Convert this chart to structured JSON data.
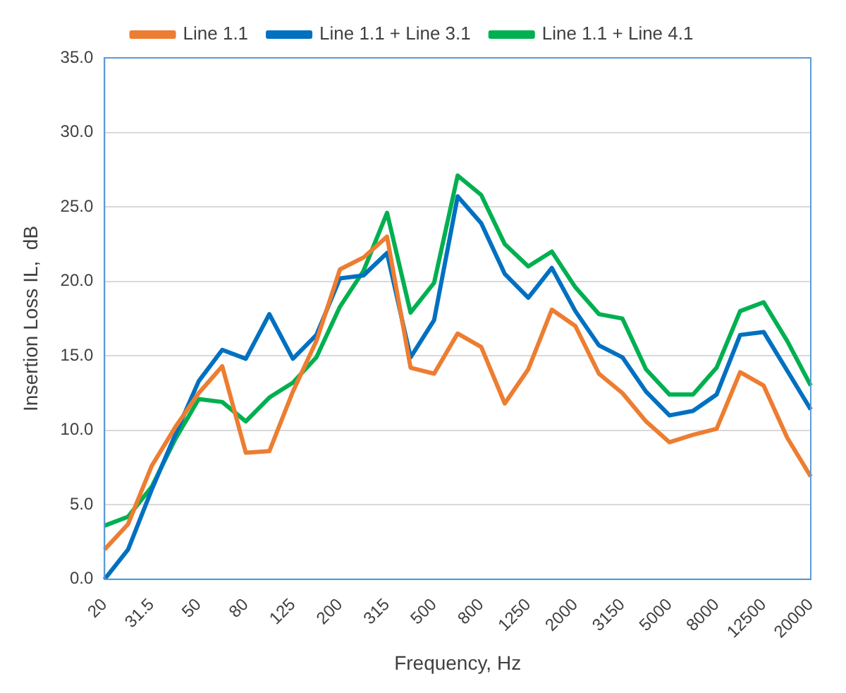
{
  "chart_data": {
    "type": "line",
    "xlabel": "Frequency, Hz",
    "ylabel": "Insertion Loss IL,  dB",
    "categories": [
      "20",
      null,
      "31.5",
      null,
      "50",
      null,
      "80",
      null,
      "125",
      null,
      "200",
      null,
      "315",
      null,
      "500",
      null,
      "800",
      null,
      "1250",
      null,
      "2000",
      null,
      "3150",
      null,
      "5000",
      null,
      "8000",
      null,
      "12500",
      null,
      "20000"
    ],
    "series": [
      {
        "name": "Line 1.1",
        "color": "#ed7d31",
        "values": [
          2.0,
          3.7,
          7.6,
          10.2,
          12.5,
          14.3,
          8.5,
          8.6,
          12.6,
          16.0,
          20.8,
          21.6,
          23.0,
          14.2,
          13.8,
          16.5,
          15.6,
          11.8,
          14.1,
          18.1,
          17.0,
          13.8,
          12.5,
          10.6,
          9.2,
          9.7,
          10.1,
          13.9,
          13.0,
          9.5,
          6.9
        ]
      },
      {
        "name": "Line 1.1 + Line 3.1",
        "color": "#0070c0",
        "values": [
          0.0,
          2.0,
          6.0,
          9.7,
          13.3,
          15.4,
          14.8,
          17.8,
          14.8,
          16.4,
          20.2,
          20.4,
          21.9,
          14.9,
          17.4,
          25.7,
          23.9,
          20.5,
          18.9,
          20.9,
          18.0,
          15.7,
          14.9,
          12.6,
          11.0,
          11.3,
          12.4,
          16.4,
          16.6,
          14.0,
          11.4
        ]
      },
      {
        "name": "Line 1.1 + Line 4.1",
        "color": "#00b050",
        "values": [
          3.6,
          4.2,
          6.2,
          9.4,
          12.1,
          11.9,
          10.6,
          12.2,
          13.2,
          14.9,
          18.3,
          20.7,
          24.6,
          17.9,
          19.9,
          27.1,
          25.8,
          22.5,
          21.0,
          22.0,
          19.6,
          17.8,
          17.5,
          14.1,
          12.4,
          12.4,
          14.2,
          18.0,
          18.6,
          16.0,
          13.0
        ]
      }
    ],
    "ylim": [
      0,
      35
    ],
    "yticks": [
      {
        "value": 0,
        "label": "0.0"
      },
      {
        "value": 5,
        "label": "5.0"
      },
      {
        "value": 10,
        "label": "10.0"
      },
      {
        "value": 15,
        "label": "15.0"
      },
      {
        "value": 20,
        "label": "20.0"
      },
      {
        "value": 25,
        "label": "25.0"
      },
      {
        "value": 30,
        "label": "30.0"
      },
      {
        "value": 35,
        "label": "35.0"
      }
    ],
    "grid": "y",
    "legend": "top",
    "marker": "none",
    "line_style": "solid"
  }
}
